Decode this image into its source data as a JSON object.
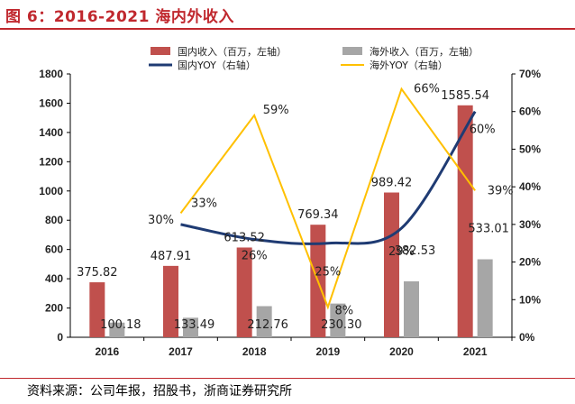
{
  "header": {
    "title": "图 6：2016-2021 海内外收入"
  },
  "footer": {
    "source": "资料来源：公司年报，招股书，浙商证券研究所"
  },
  "colors": {
    "domestic_bar": "#c0504d",
    "overseas_bar": "#a6a6a6",
    "domestic_line": "#1f3b73",
    "overseas_line": "#ffc000"
  },
  "chart_data": {
    "type": "bar",
    "categories": [
      "2016",
      "2017",
      "2018",
      "2019",
      "2020",
      "2021"
    ],
    "series": [
      {
        "name": "国内收入（百万，左轴）",
        "kind": "bar",
        "axis": "left",
        "values": [
          375.82,
          487.91,
          613.52,
          769.34,
          989.42,
          1585.54
        ],
        "labels": [
          "375.82",
          "487.91",
          "613.52",
          "769.34",
          "989.42",
          "1585.54"
        ]
      },
      {
        "name": "海外收入（百万，左轴）",
        "kind": "bar",
        "axis": "left",
        "values": [
          100.18,
          133.49,
          212.76,
          230.3,
          382.53,
          533.01
        ],
        "labels": [
          "100.18",
          "133.49",
          "212.76",
          "230.30",
          "382.53",
          "533.01"
        ]
      },
      {
        "name": "国内YOY（右轴）",
        "kind": "line",
        "axis": "right",
        "values": [
          null,
          30,
          26,
          25,
          29,
          60
        ],
        "labels": [
          "",
          "30%",
          "26%",
          "25%",
          "29%",
          "60%"
        ]
      },
      {
        "name": "海外YOY（右轴）",
        "kind": "line",
        "axis": "right",
        "values": [
          null,
          33,
          59,
          8,
          66,
          39
        ],
        "labels": [
          "",
          "33%",
          "59%",
          "8%",
          "66%",
          "39%"
        ]
      }
    ],
    "left_axis": {
      "min": 0,
      "max": 1800,
      "step": 200,
      "ticks": [
        "0",
        "200",
        "400",
        "600",
        "800",
        "1000",
        "1200",
        "1400",
        "1600",
        "1800"
      ]
    },
    "right_axis": {
      "min": 0,
      "max": 70,
      "step": 10,
      "ticks": [
        "0%",
        "10%",
        "20%",
        "30%",
        "40%",
        "50%",
        "60%",
        "70%"
      ]
    },
    "grid": false,
    "legend_position": "top"
  }
}
